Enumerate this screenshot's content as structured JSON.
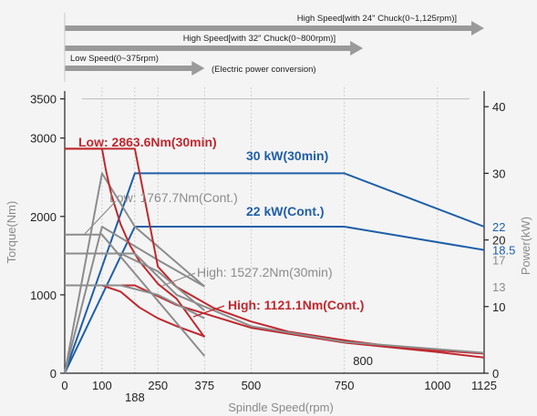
{
  "chart_data": {
    "type": "line",
    "xlabel": "Spindle Speed(rpm)",
    "ylabel_left": "Torque(Nm)",
    "ylabel_right": "Power(kW)",
    "x_ticks": [
      0,
      100,
      188,
      250,
      375,
      500,
      750,
      1000,
      1125
    ],
    "x_tick_labels": [
      "0",
      "100",
      "188",
      "250",
      "375",
      "500",
      "750",
      "1000",
      "1125"
    ],
    "extra_x_label": "800",
    "x_range": [
      0,
      1125
    ],
    "y_left_range": [
      0,
      3600
    ],
    "y_left_ticks": [
      0,
      1000,
      2000,
      3000,
      3500
    ],
    "y_left_tick_labels": [
      "0",
      "1000",
      "2000",
      "3000",
      "3500"
    ],
    "y_right_range": [
      0,
      42.35
    ],
    "y_right_ticks": [
      0,
      10,
      20,
      30,
      40
    ],
    "y_right_tick_labels": [
      "0",
      "10",
      "20",
      "30",
      "40"
    ],
    "y_right_extra_ticks": [
      {
        "value": 22,
        "label": "22",
        "color": "#1f5fa8"
      },
      {
        "value": 18.5,
        "label": "18.5",
        "color": "#1f5fa8"
      },
      {
        "value": 17,
        "label": "17",
        "color": "#8c8c8c"
      },
      {
        "value": 13,
        "label": "13",
        "color": "#8c8c8c"
      }
    ],
    "speed_ranges": [
      {
        "label": "High Speed[with 24\" Chuck(0~1,125rpm)]",
        "to": 1125
      },
      {
        "label": "High Speed[with 32\" Chuck(0~800rpm)]",
        "to": 800
      },
      {
        "label": "Low Speed(0~375rpm)",
        "to": 375
      }
    ],
    "conversion_label": "(Electric power conversion)",
    "series": [
      {
        "axis": "right",
        "color": "#1f5fa8",
        "x": [
          0,
          188,
          750,
          1125
        ],
        "y": [
          0,
          30,
          30,
          22
        ]
      },
      {
        "axis": "right",
        "color": "#1f5fa8",
        "x": [
          0,
          188,
          750,
          1125
        ],
        "y": [
          0,
          22,
          22,
          18.5
        ]
      },
      {
        "axis": "right",
        "color": "#8c8c8c",
        "x": [
          0,
          100,
          188,
          375
        ],
        "y": [
          0,
          30,
          22,
          13
        ]
      },
      {
        "axis": "right",
        "color": "#8c8c8c",
        "x": [
          0,
          100,
          250,
          375
        ],
        "y": [
          0,
          22,
          17,
          13
        ]
      },
      {
        "axis": "left",
        "color": "#c0282e",
        "x": [
          0,
          100,
          110,
          125,
          150,
          175,
          200,
          250,
          300,
          375
        ],
        "y": [
          2863.6,
          2863.6,
          2600,
          2280,
          1900,
          1630,
          1430,
          1140,
          950,
          460
        ]
      },
      {
        "axis": "left",
        "color": "#c0282e",
        "x": [
          0,
          100,
          150,
          200,
          250,
          300,
          375
        ],
        "y": [
          1121.1,
          1121.1,
          1040,
          840,
          700,
          600,
          470
        ]
      },
      {
        "axis": "left",
        "color": "#c0282e",
        "x": [
          0,
          188,
          250,
          300,
          400,
          500,
          600,
          750,
          900,
          1000,
          1125
        ],
        "y": [
          2863.6,
          2863.6,
          1360,
          1100,
          830,
          660,
          530,
          420,
          330,
          290,
          250
        ]
      },
      {
        "axis": "left",
        "color": "#c0282e",
        "x": [
          0,
          188,
          300,
          500,
          750,
          1000,
          1125
        ],
        "y": [
          1121.1,
          1121.1,
          870,
          580,
          390,
          270,
          200
        ]
      },
      {
        "axis": "left",
        "color": "#8c8c8c",
        "x": [
          0,
          100,
          375
        ],
        "y": [
          1767.7,
          1767.7,
          220
        ]
      },
      {
        "axis": "left",
        "color": "#8c8c8c",
        "x": [
          0,
          150,
          250,
          375
        ],
        "y": [
          1527.2,
          1527.2,
          1300,
          800
        ]
      },
      {
        "axis": "left",
        "color": "#8c8c8c",
        "x": [
          0,
          150,
          250,
          375
        ],
        "y": [
          1121.1,
          1121.1,
          1000,
          700
        ]
      },
      {
        "axis": "left",
        "color": "#8c8c8c",
        "x": [
          0,
          188,
          300,
          500,
          750,
          1125
        ],
        "y": [
          1527.2,
          1527.2,
          1000,
          600,
          400,
          260
        ]
      }
    ],
    "annotations": [
      {
        "text": "Low: 2863.6Nm(30min)",
        "color": "#c0282e",
        "bold": true
      },
      {
        "text": "30 kW(30min)",
        "color": "#1f5fa8",
        "bold": true
      },
      {
        "text": "Low: 1767.7Nm(Cont.)",
        "color": "#8c8c8c",
        "bold": false
      },
      {
        "text": "22 kW(Cont.)",
        "color": "#1f5fa8",
        "bold": true
      },
      {
        "text": "High: 1527.2Nm(30min)",
        "color": "#8c8c8c",
        "bold": false
      },
      {
        "text": "High: 1121.1Nm(Cont.)",
        "color": "#c0282e",
        "bold": true
      }
    ],
    "grid": "vertical dotted at tick speeds"
  }
}
